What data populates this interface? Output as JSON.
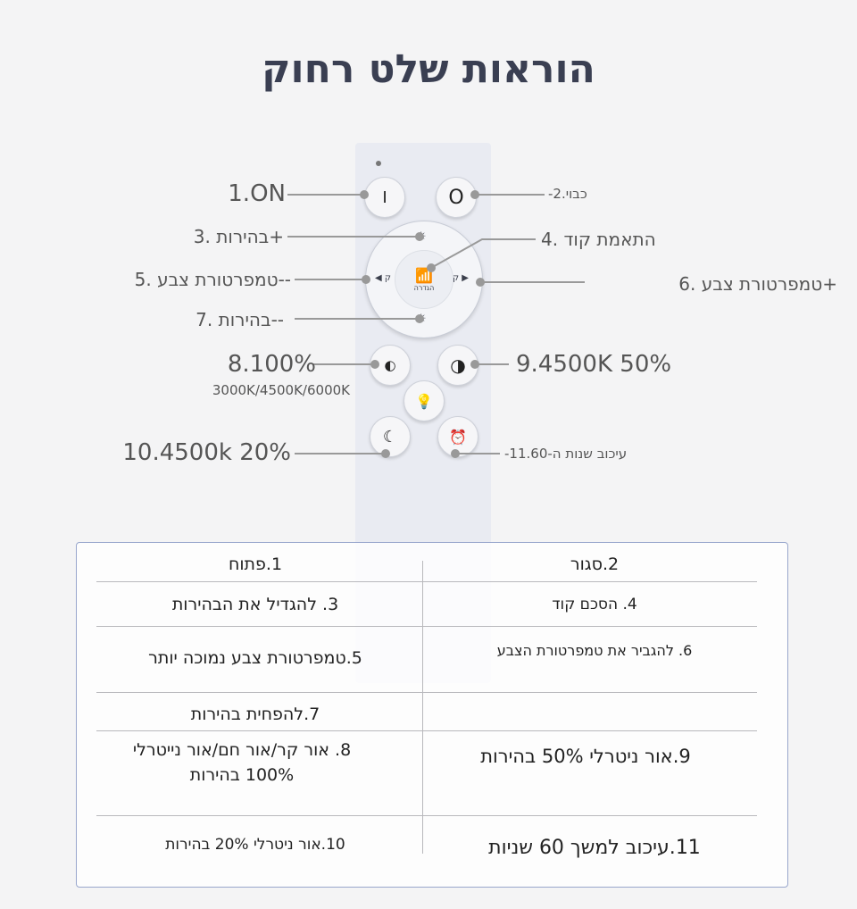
{
  "title": "הוראות שלט רחוק",
  "remote": {
    "buttons": {
      "on": "I",
      "off": "O",
      "pair_label": "הגדרה",
      "left_label": "ק",
      "right_label": "ק"
    },
    "annotations": {
      "a1": "1.ON",
      "a2": "-2.כבוי",
      "a3": "3. בהירות+",
      "a4": "4. התאמת קוד",
      "a5": "5. טמפרטורת צבע--",
      "a6": "6. טמפרטורת צבע+",
      "a7": "7. בהירות--",
      "a8": "8.100%",
      "a8sub": "3000K/4500K/6000K",
      "a9": "9.4500K 50%",
      "a10": "10.4500k 20%",
      "a11": "-11.עיכוב שנות ה-60"
    }
  },
  "table": {
    "rows": [
      [
        "1.פתוח",
        "2.סגור"
      ],
      [
        "3. להגדיל את הבהירות",
        "4. הסכם קוד"
      ],
      [
        "5.טמפרטורת צבע נמוכה יותר",
        "6. להגביר את טמפרטורת הצבע"
      ],
      [
        "7.להפחית בהירות",
        ""
      ],
      [
        "8. אור קר/אור חם/אור נייטרלי 100% בהירות",
        "9.אור ניטרלי 50% בהירות"
      ],
      [
        "10.אור ניטרלי 20% בהירות",
        "11.עיכוב למשך 60 שניות"
      ]
    ]
  },
  "colors": {
    "background": "#f4f4f5",
    "table_border": "#98a6cc",
    "remote": "#e9ebf2"
  }
}
